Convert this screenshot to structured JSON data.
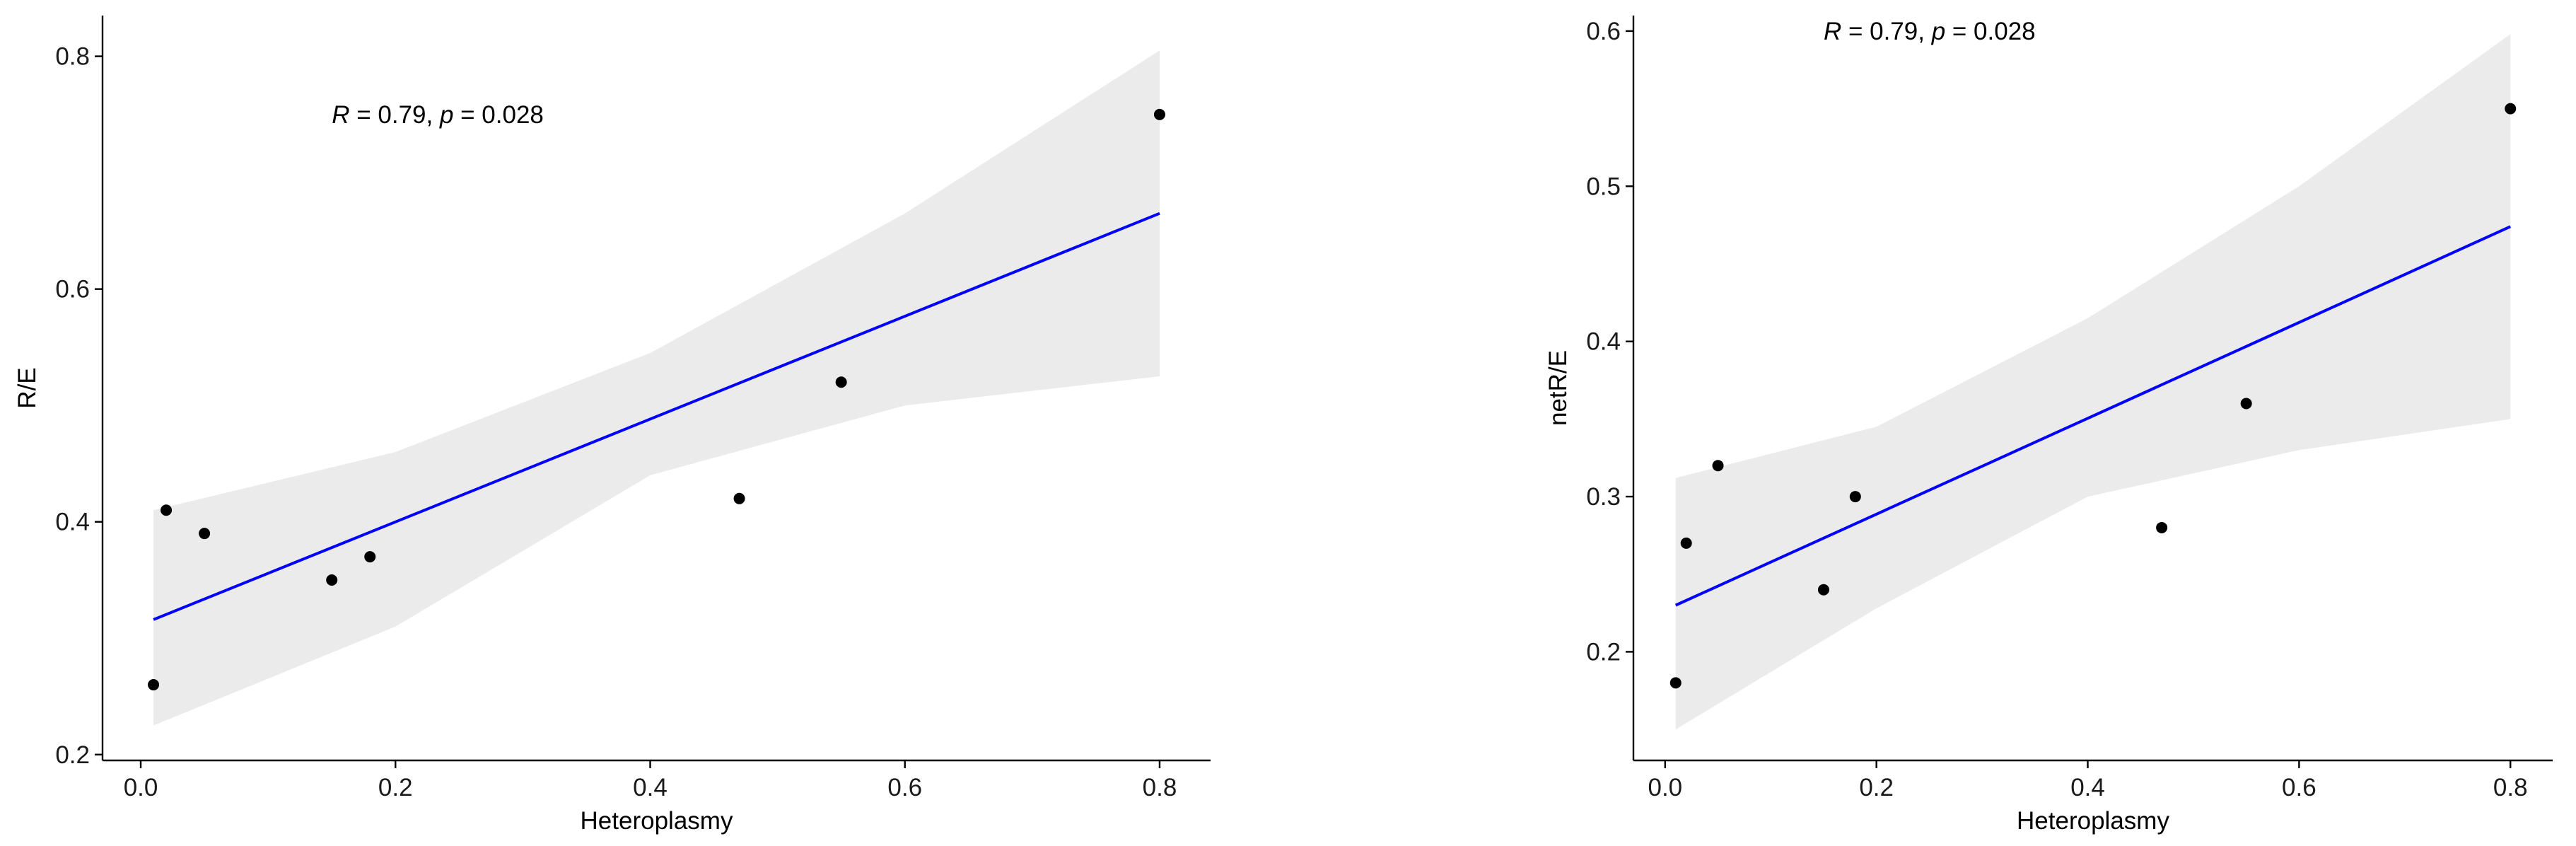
{
  "chart_data": [
    {
      "type": "scatter",
      "xlabel": "Heteroplasmy",
      "ylabel": "R/E",
      "xlim": [
        -0.03,
        0.84
      ],
      "ylim": [
        0.195,
        0.835
      ],
      "xticks": [
        0.0,
        0.2,
        0.4,
        0.6,
        0.8
      ],
      "xtick_labels": [
        "0.0",
        "0.2",
        "0.4",
        "0.6",
        "0.8"
      ],
      "yticks": [
        0.2,
        0.4,
        0.6,
        0.8
      ],
      "ytick_labels": [
        "0.2",
        "0.4",
        "0.6",
        "0.8"
      ],
      "annotation": {
        "r_label": "R",
        "r_value": " = 0.79, ",
        "p_label": "p",
        "p_value": " = 0.028",
        "x": 0.15,
        "y": 0.75
      },
      "points": [
        {
          "x": 0.01,
          "y": 0.26
        },
        {
          "x": 0.02,
          "y": 0.41
        },
        {
          "x": 0.05,
          "y": 0.39
        },
        {
          "x": 0.15,
          "y": 0.35
        },
        {
          "x": 0.18,
          "y": 0.37
        },
        {
          "x": 0.47,
          "y": 0.42
        },
        {
          "x": 0.55,
          "y": 0.52
        },
        {
          "x": 0.8,
          "y": 0.75
        }
      ],
      "fit": {
        "x": [
          0.01,
          0.8
        ],
        "y": [
          0.316,
          0.665
        ]
      },
      "ci": {
        "x": [
          0.01,
          0.2,
          0.4,
          0.6,
          0.8
        ],
        "upper": [
          0.41,
          0.46,
          0.545,
          0.665,
          0.805
        ],
        "lower": [
          0.225,
          0.31,
          0.44,
          0.5,
          0.525
        ]
      },
      "grid": false,
      "colors": {
        "line": "#0000ff",
        "band": "#ebebeb",
        "point": "#000000"
      }
    },
    {
      "type": "scatter",
      "xlabel": "Heteroplasmy",
      "ylabel": "netR/E",
      "xlim": [
        -0.03,
        0.84
      ],
      "ylim": [
        0.13,
        0.61
      ],
      "xticks": [
        0.0,
        0.2,
        0.4,
        0.6,
        0.8
      ],
      "xtick_labels": [
        "0.0",
        "0.2",
        "0.4",
        "0.6",
        "0.8"
      ],
      "yticks": [
        0.2,
        0.3,
        0.4,
        0.5,
        0.6
      ],
      "ytick_labels": [
        "0.2",
        "0.3",
        "0.4",
        "0.5",
        "0.6"
      ],
      "annotation": {
        "r_label": "R",
        "r_value": " = 0.79, ",
        "p_label": "p",
        "p_value": " = 0.028",
        "x": 0.15,
        "y": 0.6
      },
      "points": [
        {
          "x": 0.01,
          "y": 0.18
        },
        {
          "x": 0.02,
          "y": 0.27
        },
        {
          "x": 0.05,
          "y": 0.32
        },
        {
          "x": 0.15,
          "y": 0.24
        },
        {
          "x": 0.18,
          "y": 0.3
        },
        {
          "x": 0.47,
          "y": 0.28
        },
        {
          "x": 0.55,
          "y": 0.36
        },
        {
          "x": 0.8,
          "y": 0.55
        }
      ],
      "fit": {
        "x": [
          0.01,
          0.8
        ],
        "y": [
          0.23,
          0.474
        ]
      },
      "ci": {
        "x": [
          0.01,
          0.2,
          0.4,
          0.6,
          0.8
        ],
        "upper": [
          0.312,
          0.345,
          0.415,
          0.5,
          0.598
        ],
        "lower": [
          0.15,
          0.228,
          0.3,
          0.33,
          0.35
        ]
      },
      "grid": false,
      "colors": {
        "line": "#0000ff",
        "band": "#ebebeb",
        "point": "#000000"
      }
    }
  ]
}
